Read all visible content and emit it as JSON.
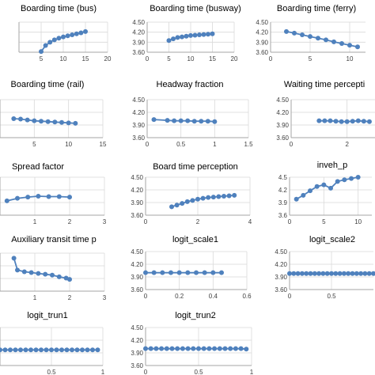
{
  "chart_data": [
    {
      "type": "line",
      "title": "Boarding time (bus)",
      "x_ticks": [
        5,
        10,
        15,
        20
      ],
      "y_ticks": [],
      "xlim": [
        0,
        20
      ],
      "ylim": [
        3.6,
        4.5
      ],
      "series": [
        {
          "x": [
            5,
            6,
            7,
            8,
            9,
            10,
            11,
            12,
            13,
            14,
            15
          ],
          "y": [
            3.62,
            3.8,
            3.9,
            3.97,
            4.02,
            4.06,
            4.09,
            4.12,
            4.15,
            4.18,
            4.22
          ]
        }
      ]
    },
    {
      "type": "line",
      "title": "Boarding time (busway)",
      "x_ticks": [
        0,
        5,
        10,
        15,
        20
      ],
      "y_ticks": [
        "3.60",
        "3.90",
        "4.20",
        "4.50"
      ],
      "xlim": [
        0,
        20
      ],
      "ylim": [
        3.6,
        4.5
      ],
      "series": [
        {
          "x": [
            5,
            6,
            7,
            8,
            9,
            10,
            11,
            12,
            13,
            14,
            15
          ],
          "y": [
            3.95,
            4.0,
            4.04,
            4.06,
            4.08,
            4.1,
            4.11,
            4.12,
            4.13,
            4.14,
            4.15
          ]
        }
      ]
    },
    {
      "type": "line",
      "title": "Boarding time (ferry)",
      "x_ticks": [
        0,
        5,
        10
      ],
      "y_ticks": [
        "3.60",
        "3.90",
        "4.20",
        "4.50"
      ],
      "xlim": [
        0,
        12
      ],
      "ylim": [
        3.6,
        4.5
      ],
      "series": [
        {
          "x": [
            2,
            3,
            4,
            5,
            6,
            7,
            8,
            9,
            10,
            11
          ],
          "y": [
            4.22,
            4.17,
            4.12,
            4.07,
            4.02,
            3.97,
            3.91,
            3.86,
            3.81,
            3.76
          ]
        }
      ]
    },
    {
      "type": "line",
      "title": "Boarding time (rail)",
      "x_ticks": [
        5,
        10,
        15
      ],
      "y_ticks": [],
      "xlim": [
        0,
        15
      ],
      "ylim": [
        3.6,
        4.5
      ],
      "series": [
        {
          "x": [
            2,
            3,
            4,
            5,
            6,
            7,
            8,
            9,
            10,
            11
          ],
          "y": [
            4.05,
            4.04,
            4.02,
            4.0,
            3.99,
            3.98,
            3.97,
            3.96,
            3.95,
            3.94
          ]
        }
      ]
    },
    {
      "type": "line",
      "title": "Headway fraction",
      "x_ticks": [
        "0",
        "0.5",
        "1",
        "1.5"
      ],
      "y_ticks": [
        "3.60",
        "3.90",
        "4.20",
        "4.50"
      ],
      "xlim": [
        0,
        1.5
      ],
      "ylim": [
        3.6,
        4.5
      ],
      "series": [
        {
          "x": [
            0.1,
            0.3,
            0.4,
            0.5,
            0.6,
            0.7,
            0.8,
            0.9,
            1.0
          ],
          "y": [
            4.03,
            4.01,
            4.0,
            4.0,
            4.0,
            3.99,
            3.99,
            3.99,
            3.98
          ]
        }
      ]
    },
    {
      "type": "line",
      "title": "Waiting time percepti",
      "x_ticks": [
        0,
        2
      ],
      "y_ticks": [
        "3.60",
        "3.90",
        "4.20",
        "4.50"
      ],
      "xlim": [
        0,
        3
      ],
      "ylim": [
        3.6,
        4.5
      ],
      "series": [
        {
          "x": [
            1.0,
            1.2,
            1.4,
            1.6,
            1.8,
            2.0,
            2.2,
            2.4,
            2.6,
            2.8
          ],
          "y": [
            4.0,
            4.0,
            4.0,
            3.99,
            3.98,
            3.98,
            3.99,
            4.0,
            3.99,
            3.98
          ]
        }
      ]
    },
    {
      "type": "line",
      "title": "Spread factor",
      "x_ticks": [
        1,
        2,
        3
      ],
      "y_ticks": [],
      "xlim": [
        0,
        3
      ],
      "ylim": [
        3.6,
        4.5
      ],
      "series": [
        {
          "x": [
            0.2,
            0.5,
            0.8,
            1.1,
            1.4,
            1.7,
            2.0
          ],
          "y": [
            3.94,
            4.0,
            4.03,
            4.05,
            4.04,
            4.04,
            4.03
          ]
        }
      ]
    },
    {
      "type": "line",
      "title": "Board time perception",
      "x_ticks": [
        0,
        2,
        4
      ],
      "y_ticks": [
        "3.60",
        "3.90",
        "4.20",
        "4.50"
      ],
      "xlim": [
        0,
        4
      ],
      "ylim": [
        3.6,
        4.5
      ],
      "series": [
        {
          "x": [
            1.0,
            1.2,
            1.4,
            1.6,
            1.8,
            2.0,
            2.2,
            2.4,
            2.6,
            2.8,
            3.0,
            3.2,
            3.4
          ],
          "y": [
            3.8,
            3.84,
            3.88,
            3.92,
            3.95,
            3.98,
            4.0,
            4.02,
            4.03,
            4.04,
            4.05,
            4.06,
            4.07
          ]
        }
      ]
    },
    {
      "type": "line",
      "title": "inveh_p",
      "x_ticks": [
        0,
        5,
        10
      ],
      "y_ticks": [
        "3.6",
        "3.9",
        "4.2",
        "4.5"
      ],
      "xlim": [
        0,
        12
      ],
      "ylim": [
        3.6,
        4.5
      ],
      "series": [
        {
          "x": [
            1,
            2,
            3,
            4,
            5,
            6,
            7,
            8,
            9,
            10
          ],
          "y": [
            3.98,
            4.07,
            4.18,
            4.28,
            4.32,
            4.24,
            4.4,
            4.44,
            4.47,
            4.5
          ]
        }
      ]
    },
    {
      "type": "line",
      "title": "Auxiliary transit time p",
      "x_ticks": [
        1,
        2,
        3
      ],
      "y_ticks": [],
      "xlim": [
        0,
        3
      ],
      "ylim": [
        3.6,
        4.5
      ],
      "series": [
        {
          "x": [
            0.4,
            0.5,
            0.7,
            0.9,
            1.1,
            1.3,
            1.5,
            1.7,
            1.9,
            2.0
          ],
          "y": [
            4.38,
            4.1,
            4.06,
            4.04,
            4.02,
            4.0,
            3.98,
            3.94,
            3.91,
            3.88
          ]
        }
      ]
    },
    {
      "type": "line",
      "title": "logit_scale1",
      "x_ticks": [
        "0",
        "0.2",
        "0.4",
        "0.6"
      ],
      "y_ticks": [
        "3.60",
        "3.90",
        "4.20",
        "4.50"
      ],
      "xlim": [
        0,
        0.6
      ],
      "ylim": [
        3.6,
        4.5
      ],
      "series": [
        {
          "x": [
            0.0,
            0.05,
            0.1,
            0.15,
            0.2,
            0.25,
            0.3,
            0.35,
            0.4,
            0.45
          ],
          "y": [
            4.0,
            4.0,
            4.0,
            4.0,
            4.0,
            4.0,
            4.0,
            4.0,
            4.0,
            4.0
          ]
        }
      ]
    },
    {
      "type": "line",
      "title": "logit_scale2",
      "x_ticks": [
        "0",
        "0.5"
      ],
      "y_ticks": [
        "3.60",
        "3.90",
        "4.20",
        "4.50"
      ],
      "xlim": [
        0,
        1
      ],
      "ylim": [
        3.6,
        4.5
      ],
      "series": [
        {
          "x": [
            0.0,
            0.05,
            0.1,
            0.15,
            0.2,
            0.25,
            0.3,
            0.35,
            0.4,
            0.45,
            0.5,
            0.55,
            0.6,
            0.65,
            0.7,
            0.75,
            0.8,
            0.85,
            0.9,
            0.95,
            1.0
          ],
          "y": [
            3.98,
            3.98,
            3.98,
            3.98,
            3.98,
            3.98,
            3.98,
            3.98,
            3.98,
            3.98,
            3.98,
            3.98,
            3.98,
            3.98,
            3.98,
            3.98,
            3.98,
            3.98,
            3.98,
            3.98,
            3.98
          ]
        }
      ]
    },
    {
      "type": "line",
      "title": "logit_trun1",
      "x_ticks": [
        "0.5",
        "1"
      ],
      "y_ticks": [],
      "xlim": [
        0,
        1
      ],
      "ylim": [
        3.6,
        4.5
      ],
      "series": [
        {
          "x": [
            0.0,
            0.05,
            0.1,
            0.15,
            0.2,
            0.25,
            0.3,
            0.35,
            0.4,
            0.45,
            0.5,
            0.55,
            0.6,
            0.65,
            0.7,
            0.75,
            0.8,
            0.85,
            0.9,
            0.95
          ],
          "y": [
            3.97,
            3.97,
            3.97,
            3.97,
            3.97,
            3.97,
            3.97,
            3.97,
            3.97,
            3.97,
            3.97,
            3.97,
            3.97,
            3.97,
            3.97,
            3.97,
            3.97,
            3.97,
            3.97,
            3.97
          ]
        }
      ]
    },
    {
      "type": "line",
      "title": "logit_trun2",
      "x_ticks": [
        "0",
        "0.5",
        "1"
      ],
      "y_ticks": [
        "3.60",
        "3.90",
        "4.20",
        "4.50"
      ],
      "xlim": [
        0,
        1
      ],
      "ylim": [
        3.6,
        4.5
      ],
      "series": [
        {
          "x": [
            0.0,
            0.05,
            0.1,
            0.15,
            0.2,
            0.25,
            0.3,
            0.35,
            0.4,
            0.45,
            0.5,
            0.55,
            0.6,
            0.65,
            0.7,
            0.75,
            0.8,
            0.85,
            0.9,
            0.95
          ],
          "y": [
            4.0,
            4.0,
            4.0,
            4.0,
            4.0,
            4.0,
            4.0,
            4.0,
            4.0,
            4.0,
            4.0,
            4.0,
            4.0,
            4.0,
            4.0,
            4.0,
            4.0,
            4.0,
            4.0,
            3.99
          ]
        }
      ]
    }
  ],
  "colors": {
    "line": "#4f81bd",
    "marker": "#4f81bd",
    "gridline": "#d9d9d9",
    "axis": "#a6a6a6",
    "text": "#000000",
    "tick_text": "#404040"
  }
}
